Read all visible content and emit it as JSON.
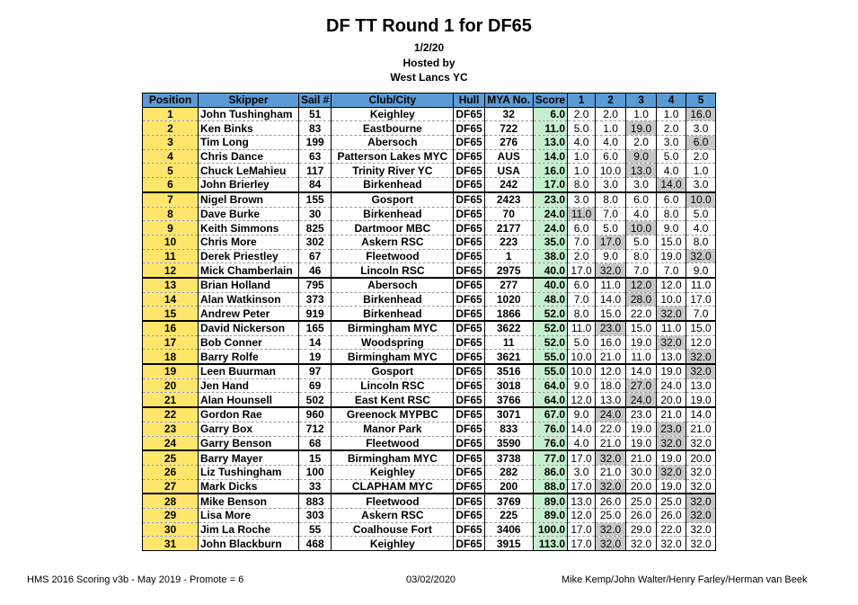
{
  "header": {
    "title": "DF TT Round 1 for DF65",
    "date": "1/2/20",
    "hosted_by_label": "Hosted by",
    "club": "West Lancs YC"
  },
  "table": {
    "columns": [
      "Position",
      "Skipper",
      "Sail #",
      "Club/City",
      "Hull",
      "MYA No.",
      "Score",
      "1",
      "2",
      "3",
      "4",
      "5"
    ],
    "rows": [
      {
        "pos": "1",
        "skipper": "John Tushingham",
        "sail": "51",
        "club": "Keighley",
        "hull": "DF65",
        "mya": "32",
        "score": "6.0",
        "races": [
          "2.0",
          "2.0",
          "1.0",
          "1.0",
          "16.0"
        ],
        "disc": [
          4
        ]
      },
      {
        "pos": "2",
        "skipper": "Ken Binks",
        "sail": "83",
        "club": "Eastbourne",
        "hull": "DF65",
        "mya": "722",
        "score": "11.0",
        "races": [
          "5.0",
          "1.0",
          "19.0",
          "2.0",
          "3.0"
        ],
        "disc": [
          2
        ]
      },
      {
        "pos": "3",
        "skipper": "Tim Long",
        "sail": "199",
        "club": "Abersoch",
        "hull": "DF65",
        "mya": "276",
        "score": "13.0",
        "races": [
          "4.0",
          "4.0",
          "2.0",
          "3.0",
          "6.0"
        ],
        "disc": [
          4
        ]
      },
      {
        "pos": "4",
        "skipper": "Chris Dance",
        "sail": "63",
        "club": "Patterson Lakes MYC",
        "hull": "DF65",
        "mya": "AUS",
        "score": "14.0",
        "races": [
          "1.0",
          "6.0",
          "9.0",
          "5.0",
          "2.0"
        ],
        "disc": [
          2
        ]
      },
      {
        "pos": "5",
        "skipper": "Chuck LeMahieu",
        "sail": "117",
        "club": "Trinity River YC",
        "hull": "DF65",
        "mya": "USA",
        "score": "16.0",
        "races": [
          "1.0",
          "10.0",
          "13.0",
          "4.0",
          "1.0"
        ],
        "disc": [
          2
        ]
      },
      {
        "pos": "6",
        "skipper": "John Brierley",
        "sail": "84",
        "club": "Birkenhead",
        "hull": "DF65",
        "mya": "242",
        "score": "17.0",
        "races": [
          "8.0",
          "3.0",
          "3.0",
          "14.0",
          "3.0"
        ],
        "disc": [
          3
        ]
      },
      {
        "pos": "7",
        "skipper": "Nigel Brown",
        "sail": "155",
        "club": "Gosport",
        "hull": "DF65",
        "mya": "2423",
        "score": "23.0",
        "races": [
          "3.0",
          "8.0",
          "6.0",
          "6.0",
          "10.0"
        ],
        "disc": [
          4
        ]
      },
      {
        "pos": "8",
        "skipper": "Dave Burke",
        "sail": "30",
        "club": "Birkenhead",
        "hull": "DF65",
        "mya": "70",
        "score": "24.0",
        "races": [
          "11.0",
          "7.0",
          "4.0",
          "8.0",
          "5.0"
        ],
        "disc": [
          0
        ]
      },
      {
        "pos": "9",
        "skipper": "Keith Simmons",
        "sail": "825",
        "club": "Dartmoor MBC",
        "hull": "DF65",
        "mya": "2177",
        "score": "24.0",
        "races": [
          "6.0",
          "5.0",
          "10.0",
          "9.0",
          "4.0"
        ],
        "disc": [
          2
        ]
      },
      {
        "pos": "10",
        "skipper": "Chris More",
        "sail": "302",
        "club": "Askern RSC",
        "hull": "DF65",
        "mya": "223",
        "score": "35.0",
        "races": [
          "7.0",
          "17.0",
          "5.0",
          "15.0",
          "8.0"
        ],
        "disc": [
          1
        ]
      },
      {
        "pos": "11",
        "skipper": "Derek Priestley",
        "sail": "67",
        "club": "Fleetwood",
        "hull": "DF65",
        "mya": "1",
        "score": "38.0",
        "races": [
          "2.0",
          "9.0",
          "8.0",
          "19.0",
          "32.0"
        ],
        "disc": [
          4
        ]
      },
      {
        "pos": "12",
        "skipper": "Mick Chamberlain",
        "sail": "46",
        "club": "Lincoln RSC",
        "hull": "DF65",
        "mya": "2975",
        "score": "40.0",
        "races": [
          "17.0",
          "32.0",
          "7.0",
          "7.0",
          "9.0"
        ],
        "disc": [
          1
        ]
      },
      {
        "pos": "13",
        "skipper": "Brian Holland",
        "sail": "795",
        "club": "Abersoch",
        "hull": "DF65",
        "mya": "277",
        "score": "40.0",
        "races": [
          "6.0",
          "11.0",
          "12.0",
          "12.0",
          "11.0"
        ],
        "disc": [
          2
        ]
      },
      {
        "pos": "14",
        "skipper": "Alan Watkinson",
        "sail": "373",
        "club": "Birkenhead",
        "hull": "DF65",
        "mya": "1020",
        "score": "48.0",
        "races": [
          "7.0",
          "14.0",
          "28.0",
          "10.0",
          "17.0"
        ],
        "disc": [
          2
        ]
      },
      {
        "pos": "15",
        "skipper": "Andrew Peter",
        "sail": "919",
        "club": "Birkenhead",
        "hull": "DF65",
        "mya": "1866",
        "score": "52.0",
        "races": [
          "8.0",
          "15.0",
          "22.0",
          "32.0",
          "7.0"
        ],
        "disc": [
          3
        ]
      },
      {
        "pos": "16",
        "skipper": "David Nickerson",
        "sail": "165",
        "club": "Birmingham MYC",
        "hull": "DF65",
        "mya": "3622",
        "score": "52.0",
        "races": [
          "11.0",
          "23.0",
          "15.0",
          "11.0",
          "15.0"
        ],
        "disc": [
          1
        ]
      },
      {
        "pos": "17",
        "skipper": "Bob Conner",
        "sail": "14",
        "club": "Woodspring",
        "hull": "DF65",
        "mya": "11",
        "score": "52.0",
        "races": [
          "5.0",
          "16.0",
          "19.0",
          "32.0",
          "12.0"
        ],
        "disc": [
          3
        ]
      },
      {
        "pos": "18",
        "skipper": "Barry Rolfe",
        "sail": "19",
        "club": "Birmingham MYC",
        "hull": "DF65",
        "mya": "3621",
        "score": "55.0",
        "races": [
          "10.0",
          "21.0",
          "11.0",
          "13.0",
          "32.0"
        ],
        "disc": [
          4
        ]
      },
      {
        "pos": "19",
        "skipper": "Leen Buurman",
        "sail": "97",
        "club": "Gosport",
        "hull": "DF65",
        "mya": "3516",
        "score": "55.0",
        "races": [
          "10.0",
          "12.0",
          "14.0",
          "19.0",
          "32.0"
        ],
        "disc": [
          4
        ]
      },
      {
        "pos": "20",
        "skipper": "Jen Hand",
        "sail": "69",
        "club": "Lincoln RSC",
        "hull": "DF65",
        "mya": "3018",
        "score": "64.0",
        "races": [
          "9.0",
          "18.0",
          "27.0",
          "24.0",
          "13.0"
        ],
        "disc": [
          2
        ]
      },
      {
        "pos": "21",
        "skipper": "Alan Hounsell",
        "sail": "502",
        "club": "East Kent RSC",
        "hull": "DF65",
        "mya": "3766",
        "score": "64.0",
        "races": [
          "12.0",
          "13.0",
          "24.0",
          "20.0",
          "19.0"
        ],
        "disc": [
          2
        ]
      },
      {
        "pos": "22",
        "skipper": "Gordon Rae",
        "sail": "960",
        "club": "Greenock MYPBC",
        "hull": "DF65",
        "mya": "3071",
        "score": "67.0",
        "races": [
          "9.0",
          "24.0",
          "23.0",
          "21.0",
          "14.0"
        ],
        "disc": [
          1
        ]
      },
      {
        "pos": "23",
        "skipper": "Garry Box",
        "sail": "712",
        "club": "Manor Park",
        "hull": "DF65",
        "mya": "833",
        "score": "76.0",
        "races": [
          "14.0",
          "22.0",
          "19.0",
          "23.0",
          "21.0"
        ],
        "disc": [
          3
        ]
      },
      {
        "pos": "24",
        "skipper": "Garry Benson",
        "sail": "68",
        "club": "Fleetwood",
        "hull": "DF65",
        "mya": "3590",
        "score": "76.0",
        "races": [
          "4.0",
          "21.0",
          "19.0",
          "32.0",
          "32.0"
        ],
        "disc": [
          3
        ]
      },
      {
        "pos": "25",
        "skipper": "Barry Mayer",
        "sail": "15",
        "club": "Birmingham MYC",
        "hull": "DF65",
        "mya": "3738",
        "score": "77.0",
        "races": [
          "17.0",
          "32.0",
          "21.0",
          "19.0",
          "20.0"
        ],
        "disc": [
          1
        ]
      },
      {
        "pos": "26",
        "skipper": "Liz Tushingham",
        "sail": "100",
        "club": "Keighley",
        "hull": "DF65",
        "mya": "282",
        "score": "86.0",
        "races": [
          "3.0",
          "21.0",
          "30.0",
          "32.0",
          "32.0"
        ],
        "disc": [
          3
        ]
      },
      {
        "pos": "27",
        "skipper": "Mark Dicks",
        "sail": "33",
        "club": "CLAPHAM MYC",
        "hull": "DF65",
        "mya": "200",
        "score": "88.0",
        "races": [
          "17.0",
          "32.0",
          "20.0",
          "19.0",
          "32.0"
        ],
        "disc": [
          1
        ]
      },
      {
        "pos": "28",
        "skipper": "Mike Benson",
        "sail": "883",
        "club": "Fleetwood",
        "hull": "DF65",
        "mya": "3769",
        "score": "89.0",
        "races": [
          "13.0",
          "26.0",
          "25.0",
          "25.0",
          "32.0"
        ],
        "disc": [
          4
        ]
      },
      {
        "pos": "29",
        "skipper": "Lisa More",
        "sail": "303",
        "club": "Askern RSC",
        "hull": "DF65",
        "mya": "225",
        "score": "89.0",
        "races": [
          "12.0",
          "25.0",
          "26.0",
          "26.0",
          "32.0"
        ],
        "disc": [
          4
        ]
      },
      {
        "pos": "30",
        "skipper": "Jim La Roche",
        "sail": "55",
        "club": "Coalhouse Fort",
        "hull": "DF65",
        "mya": "3406",
        "score": "100.0",
        "races": [
          "17.0",
          "32.0",
          "29.0",
          "22.0",
          "32.0"
        ],
        "disc": [
          1
        ]
      },
      {
        "pos": "31",
        "skipper": "John Blackburn",
        "sail": "468",
        "club": "Keighley",
        "hull": "DF65",
        "mya": "3915",
        "score": "113.0",
        "races": [
          "17.0",
          "32.0",
          "32.0",
          "32.0",
          "32.0"
        ],
        "disc": [
          1
        ]
      }
    ]
  },
  "footer": {
    "left": "HMS 2016 Scoring v3b - May 2019 - Promote = 6",
    "middle": "03/02/2020",
    "right": "Mike Kemp/John Walter/Henry Farley/Herman van Beek"
  },
  "colors": {
    "header_bg": "#5b9bd5",
    "position_bg": "#ffe66b",
    "score_bg": "#c6efce",
    "discard_bg": "#c8c8c8"
  }
}
